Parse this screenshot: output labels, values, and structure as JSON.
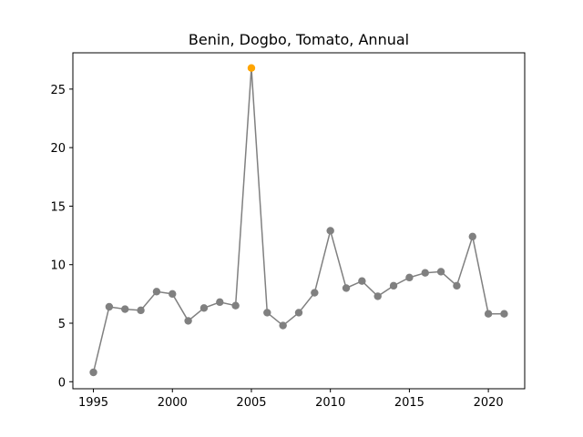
{
  "chart_data": {
    "type": "line",
    "title": "Benin, Dogbo, Tomato, Annual",
    "xlabel": "",
    "ylabel": "",
    "xlim": [
      1993.7,
      2022.3
    ],
    "ylim": [
      -0.6,
      28.1
    ],
    "x_ticks": [
      1995,
      2000,
      2005,
      2010,
      2015,
      2020
    ],
    "y_ticks": [
      0,
      5,
      10,
      15,
      20,
      25
    ],
    "grid": false,
    "line_color": "#808080",
    "marker_color": "#808080",
    "highlight_color": "#ffa500",
    "highlight_index": 10,
    "series": [
      {
        "x": [
          1995,
          1996,
          1997,
          1998,
          1999,
          2000,
          2001,
          2002,
          2003,
          2004,
          2005,
          2006,
          2007,
          2008,
          2009,
          2010,
          2011,
          2012,
          2013,
          2014,
          2015,
          2016,
          2017,
          2018,
          2019,
          2020,
          2021
        ],
        "values": [
          0.8,
          6.4,
          6.2,
          6.1,
          7.7,
          7.5,
          5.2,
          6.3,
          6.8,
          6.5,
          26.8,
          5.9,
          4.8,
          5.9,
          7.6,
          12.9,
          8.0,
          8.6,
          7.3,
          8.2,
          8.9,
          9.3,
          9.4,
          8.2,
          12.4,
          5.8,
          5.8
        ]
      }
    ]
  }
}
